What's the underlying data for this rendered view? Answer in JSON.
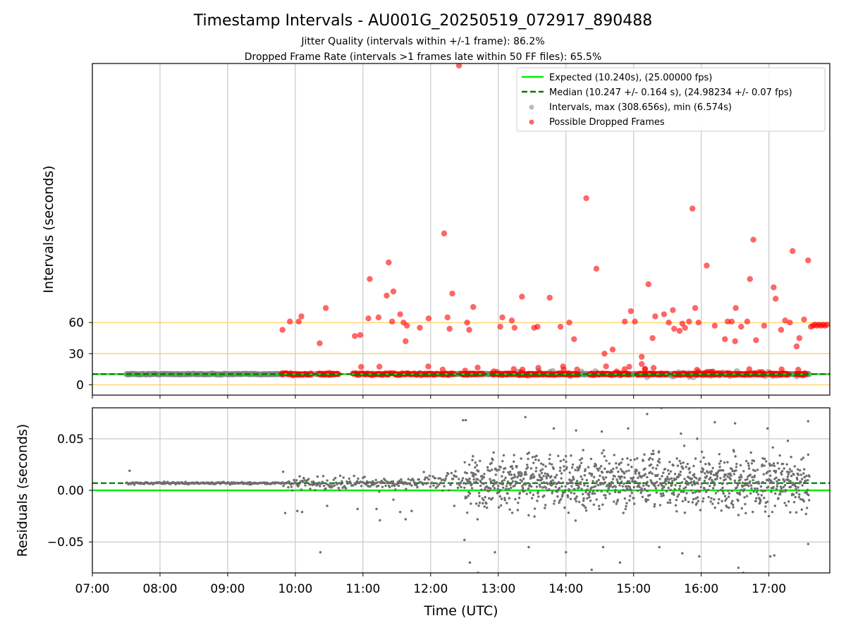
{
  "figure": {
    "title": "Timestamp Intervals - AU001G_20250519_072917_890488",
    "subtitle1": "Jitter Quality (intervals within +/-1 frame): 86.2%",
    "subtitle2": "Dropped Frame Rate (intervals >1 frames late within 50 FF files): 65.5%"
  },
  "chart_data": [
    {
      "type": "scatter",
      "panel": "top",
      "ylabel": "Intervals (seconds)",
      "yticks": [
        0,
        30,
        60
      ],
      "ylim": [
        -10,
        310
      ],
      "xlim": [
        7.0,
        17.9
      ],
      "reference_lines": [
        0,
        30,
        60
      ],
      "grid": "x",
      "legend_position": "top-right",
      "legend": [
        {
          "label": "Expected (10.240s), (25.00000 fps)",
          "style": "solid",
          "color": "#00ee00"
        },
        {
          "label": "Median (10.247 +/- 0.164 s), (24.98234 +/- 0.07 fps)",
          "style": "dashed",
          "color": "#007a00"
        },
        {
          "label": "Intervals, max (308.656s), min (6.574s)",
          "style": "marker",
          "color": "#808080"
        },
        {
          "label": "Possible Dropped Frames",
          "style": "marker",
          "color": "#ff0000"
        }
      ],
      "expected": 10.24,
      "median": 10.247,
      "normal_segments": [
        [
          7.5,
          9.8
        ],
        [
          10.3,
          10.6
        ],
        [
          11.9,
          12.9
        ],
        [
          13.0,
          17.6
        ]
      ],
      "dropped_dense_segments": [
        [
          9.8,
          10.25
        ],
        [
          10.35,
          10.65
        ],
        [
          10.85,
          11.42
        ],
        [
          11.45,
          12.1
        ],
        [
          12.15,
          12.35
        ],
        [
          12.45,
          12.78
        ],
        [
          12.9,
          13.25
        ],
        [
          13.3,
          14.2
        ],
        [
          14.35,
          14.95
        ],
        [
          15.05,
          15.5
        ],
        [
          15.6,
          16.3
        ],
        [
          16.35,
          16.95
        ],
        [
          17.0,
          17.3
        ],
        [
          17.4,
          17.55
        ]
      ],
      "dropped_frames": [
        [
          9.81,
          53
        ],
        [
          9.92,
          61
        ],
        [
          10.05,
          61
        ],
        [
          10.09,
          66
        ],
        [
          10.36,
          40
        ],
        [
          10.45,
          74
        ],
        [
          10.88,
          47
        ],
        [
          10.96,
          48
        ],
        [
          11.08,
          64
        ],
        [
          11.1,
          102
        ],
        [
          11.23,
          65
        ],
        [
          11.35,
          86
        ],
        [
          11.38,
          118
        ],
        [
          11.43,
          61
        ],
        [
          11.45,
          90
        ],
        [
          11.55,
          68
        ],
        [
          11.6,
          60
        ],
        [
          11.63,
          42
        ],
        [
          11.65,
          57
        ],
        [
          11.84,
          55
        ],
        [
          11.97,
          64
        ],
        [
          12.2,
          146
        ],
        [
          12.25,
          65
        ],
        [
          12.28,
          54
        ],
        [
          12.32,
          88
        ],
        [
          12.42,
          308
        ],
        [
          12.54,
          60
        ],
        [
          12.57,
          53
        ],
        [
          12.63,
          75
        ],
        [
          13.03,
          56
        ],
        [
          13.06,
          65
        ],
        [
          13.2,
          62
        ],
        [
          13.24,
          55
        ],
        [
          13.35,
          85
        ],
        [
          13.53,
          55
        ],
        [
          13.58,
          56
        ],
        [
          13.76,
          84
        ],
        [
          13.92,
          56
        ],
        [
          14.05,
          60
        ],
        [
          14.12,
          44
        ],
        [
          14.3,
          180
        ],
        [
          14.45,
          112
        ],
        [
          14.57,
          30
        ],
        [
          14.69,
          34
        ],
        [
          14.87,
          61
        ],
        [
          14.96,
          71
        ],
        [
          15.02,
          61
        ],
        [
          15.12,
          27
        ],
        [
          15.12,
          20
        ],
        [
          15.22,
          97
        ],
        [
          15.28,
          45
        ],
        [
          15.32,
          66
        ],
        [
          15.45,
          68
        ],
        [
          15.52,
          60
        ],
        [
          15.58,
          72
        ],
        [
          15.6,
          54
        ],
        [
          15.68,
          52
        ],
        [
          15.72,
          59
        ],
        [
          15.76,
          55
        ],
        [
          15.82,
          61
        ],
        [
          15.87,
          170
        ],
        [
          15.91,
          74
        ],
        [
          15.96,
          60
        ],
        [
          16.08,
          115
        ],
        [
          16.2,
          57
        ],
        [
          16.35,
          44
        ],
        [
          16.39,
          61
        ],
        [
          16.45,
          61
        ],
        [
          16.5,
          42
        ],
        [
          16.51,
          74
        ],
        [
          16.59,
          56
        ],
        [
          16.68,
          61
        ],
        [
          16.72,
          102
        ],
        [
          16.77,
          140
        ],
        [
          16.81,
          43
        ],
        [
          16.93,
          57
        ],
        [
          17.07,
          94
        ],
        [
          17.1,
          83
        ],
        [
          17.18,
          53
        ],
        [
          17.24,
          62
        ],
        [
          17.31,
          60
        ],
        [
          17.35,
          129
        ],
        [
          17.41,
          37
        ],
        [
          17.45,
          45
        ],
        [
          17.52,
          63
        ],
        [
          17.58,
          120
        ],
        [
          17.62,
          56
        ],
        [
          17.65,
          57
        ],
        [
          17.68,
          58
        ],
        [
          17.71,
          57
        ],
        [
          17.74,
          58
        ],
        [
          17.77,
          57
        ],
        [
          17.8,
          58
        ],
        [
          17.83,
          57
        ],
        [
          17.86,
          58
        ]
      ]
    },
    {
      "type": "scatter",
      "panel": "bottom",
      "xlabel": "Time (UTC)",
      "ylabel": "Residuals (seconds)",
      "xticks": [
        "07:00",
        "08:00",
        "09:00",
        "10:00",
        "11:00",
        "12:00",
        "13:00",
        "14:00",
        "15:00",
        "16:00",
        "17:00"
      ],
      "yticks": [
        "0.05",
        "0.00",
        "−0.05"
      ],
      "ylim": [
        -0.08,
        0.08
      ],
      "xlim": [
        7.0,
        17.9
      ],
      "grid": "both",
      "expected_residual": 0.0,
      "median_residual": 0.007,
      "residual_bands": [
        {
          "x": [
            7.5,
            9.8
          ],
          "center": 0.007,
          "spread": 0.001
        },
        {
          "x": [
            9.8,
            11.9
          ],
          "center": 0.007,
          "spread": 0.006
        },
        {
          "x": [
            11.9,
            12.5
          ],
          "center": 0.009,
          "spread": 0.009
        },
        {
          "x": [
            12.5,
            17.6
          ],
          "center": 0.008,
          "spread": 0.025
        }
      ],
      "outliers": [
        [
          7.55,
          0.019
        ],
        [
          9.82,
          0.018
        ],
        [
          9.85,
          -0.022
        ],
        [
          10.03,
          -0.02
        ],
        [
          10.1,
          -0.021
        ],
        [
          10.37,
          -0.06
        ],
        [
          10.47,
          -0.015
        ],
        [
          10.92,
          -0.018
        ],
        [
          11.2,
          -0.018
        ],
        [
          11.25,
          -0.029
        ],
        [
          11.45,
          -0.009
        ],
        [
          11.55,
          -0.021
        ],
        [
          11.63,
          -0.028
        ],
        [
          11.72,
          -0.02
        ],
        [
          12.35,
          -0.015
        ],
        [
          12.48,
          0.068
        ],
        [
          12.52,
          0.068
        ],
        [
          12.5,
          -0.048
        ],
        [
          12.58,
          -0.07
        ],
        [
          12.7,
          -0.08
        ],
        [
          12.95,
          -0.06
        ],
        [
          13.45,
          -0.055
        ],
        [
          13.4,
          0.071
        ],
        [
          13.82,
          0.06
        ],
        [
          14.0,
          -0.06
        ],
        [
          14.15,
          0.058
        ],
        [
          14.38,
          -0.077
        ],
        [
          14.55,
          -0.055
        ],
        [
          14.53,
          0.057
        ],
        [
          14.8,
          -0.07
        ],
        [
          14.92,
          0.06
        ],
        [
          15.2,
          0.074
        ],
        [
          15.38,
          -0.055
        ],
        [
          15.41,
          0.08
        ],
        [
          15.7,
          0.055
        ],
        [
          15.72,
          -0.061
        ],
        [
          15.94,
          0.05
        ],
        [
          15.97,
          -0.064
        ],
        [
          16.2,
          0.066
        ],
        [
          16.55,
          -0.075
        ],
        [
          16.62,
          -0.08
        ],
        [
          16.5,
          0.065
        ],
        [
          16.98,
          0.06
        ],
        [
          17.02,
          -0.064
        ],
        [
          17.08,
          -0.063
        ],
        [
          17.28,
          0.048
        ],
        [
          17.58,
          0.067
        ],
        [
          17.58,
          -0.052
        ]
      ]
    }
  ]
}
